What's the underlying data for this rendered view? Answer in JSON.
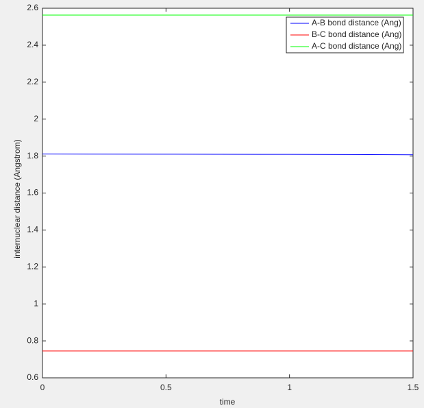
{
  "chart_data": {
    "type": "line",
    "xlabel": "time",
    "ylabel": "internuclear distance (Angstrom)",
    "x": [
      0,
      0.5,
      1,
      1.5
    ],
    "series": [
      {
        "name": "A-B bond distance (Ang)",
        "color": "#0000ff",
        "values": [
          1.811,
          1.81,
          1.809,
          1.807
        ]
      },
      {
        "name": "B-C bond distance (Ang)",
        "color": "#ff0000",
        "values": [
          0.745,
          0.745,
          0.745,
          0.745
        ]
      },
      {
        "name": "A-C bond distance (Ang)",
        "color": "#00ff00",
        "values": [
          2.563,
          2.563,
          2.563,
          2.563
        ]
      }
    ],
    "xlim": [
      0,
      1.5
    ],
    "xticks": [
      0,
      0.5,
      1,
      1.5
    ],
    "ylim": [
      0.6,
      2.6
    ],
    "yticks": [
      0.6,
      0.8,
      1,
      1.2,
      1.4,
      1.6,
      1.8,
      2,
      2.2,
      2.4,
      2.6
    ],
    "legend": "northeast"
  }
}
